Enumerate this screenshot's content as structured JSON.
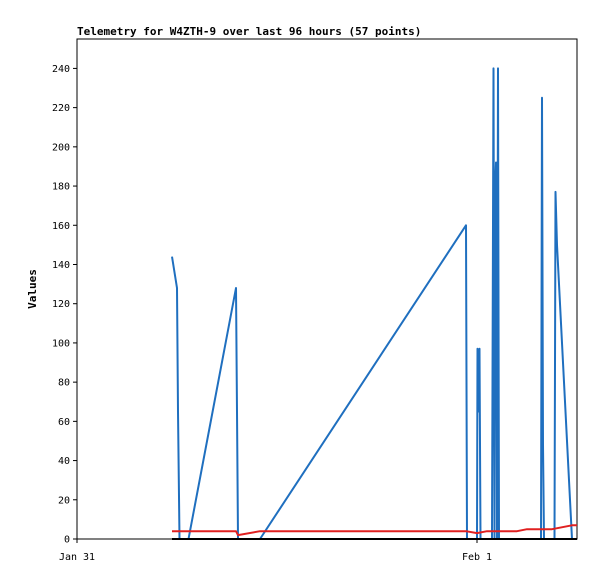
{
  "chart_data": {
    "type": "line",
    "title": "Telemetry for W4ZTH-9 over last 96 hours (57 points)",
    "ylabel": "Values",
    "xlabel": "",
    "ylim": [
      0,
      255
    ],
    "yticks": [
      0,
      20,
      40,
      60,
      80,
      100,
      120,
      140,
      160,
      180,
      200,
      220,
      240
    ],
    "x_tick_labels": [
      {
        "label": "Jan 31",
        "frac": 0.04
      },
      {
        "label": "Feb 1",
        "frac": 0.81
      }
    ],
    "x_range": [
      0,
      1
    ],
    "colors": {
      "series_a": "#1f6fbf",
      "series_b": "#e02020",
      "series_c": "#000000"
    },
    "series": [
      {
        "color": "#1f6fbf",
        "points": [
          [
            0.19,
            144
          ],
          [
            0.2,
            128
          ],
          [
            0.202,
            65
          ],
          [
            0.205,
            0
          ],
          [
            0.21,
            0
          ],
          [
            0.223,
            0
          ],
          [
            0.318,
            128
          ],
          [
            0.32,
            65
          ],
          [
            0.322,
            0
          ],
          [
            0.366,
            0
          ],
          [
            0.778,
            160
          ],
          [
            0.78,
            0
          ],
          [
            0.8,
            0
          ],
          [
            0.801,
            97
          ],
          [
            0.803,
            65
          ],
          [
            0.805,
            97
          ],
          [
            0.807,
            0
          ],
          [
            0.812,
            0
          ],
          [
            0.83,
            0
          ],
          [
            0.833,
            240
          ],
          [
            0.835,
            0
          ],
          [
            0.836,
            176
          ],
          [
            0.838,
            192
          ],
          [
            0.84,
            0
          ],
          [
            0.842,
            240
          ],
          [
            0.844,
            0
          ],
          [
            0.928,
            0
          ],
          [
            0.93,
            225
          ],
          [
            0.932,
            48
          ],
          [
            0.934,
            0
          ],
          [
            0.955,
            0
          ],
          [
            0.957,
            177
          ],
          [
            0.96,
            150
          ],
          [
            0.99,
            0
          ],
          [
            1.0,
            0
          ]
        ]
      },
      {
        "color": "#e02020",
        "points": [
          [
            0.19,
            4
          ],
          [
            0.318,
            4
          ],
          [
            0.322,
            2
          ],
          [
            0.366,
            4
          ],
          [
            0.778,
            4
          ],
          [
            0.8,
            3
          ],
          [
            0.82,
            4
          ],
          [
            0.88,
            4
          ],
          [
            0.9,
            5
          ],
          [
            0.95,
            5
          ],
          [
            0.99,
            7
          ],
          [
            1.0,
            7
          ]
        ]
      },
      {
        "color": "#000000",
        "points": [
          [
            0.19,
            0
          ],
          [
            1.0,
            0
          ]
        ]
      }
    ]
  }
}
